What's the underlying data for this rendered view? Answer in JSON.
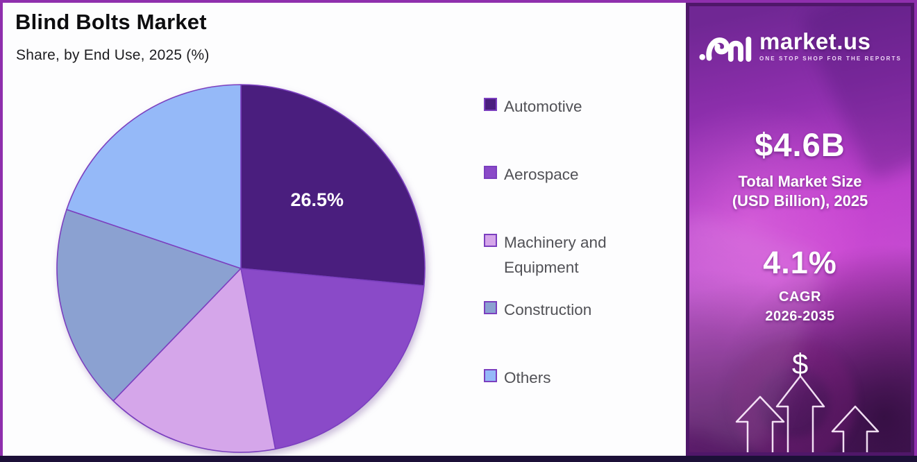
{
  "header": {
    "title": "Blind Bolts Market",
    "subtitle": "Share, by End Use, 2025 (%)"
  },
  "chart_data": {
    "type": "pie",
    "title": "Blind Bolts Market Share, by End Use, 2025 (%)",
    "unit": "%",
    "direction": "clockwise",
    "start_angle_deg": 0,
    "legend_position": "right",
    "stroke_color": "#7B3FBF",
    "slices": [
      {
        "label": "Automotive",
        "value": 26.5,
        "color": "#4A1E7E",
        "data_label": "26.5%"
      },
      {
        "label": "Aerospace",
        "value": 20.5,
        "color": "#8A4AC8",
        "data_label": ""
      },
      {
        "label": "Machinery and Equipment",
        "value": 15.2,
        "color": "#D5A6EA",
        "data_label": ""
      },
      {
        "label": "Construction",
        "value": 18.0,
        "color": "#8BA1D1",
        "data_label": ""
      },
      {
        "label": "Others",
        "value": 19.8,
        "color": "#95B9F8",
        "data_label": ""
      }
    ]
  },
  "sidebar": {
    "logo": {
      "brand": "market.us",
      "tagline": "ONE STOP SHOP FOR THE REPORTS"
    },
    "market_size": {
      "value": "$4.6B",
      "label_line1": "Total Market Size",
      "label_line2": "(USD Billion), 2025"
    },
    "cagr": {
      "value": "4.1%",
      "label_line1": "CAGR",
      "label_line2": "2026-2035"
    },
    "dollar_symbol": "$"
  },
  "colors": {
    "frame_border": "#8F2FAD",
    "bottom_bar": "#1C1038",
    "sidebar_border": "#4F1769",
    "pie_stroke": "#7B3FBF",
    "legend_text": "#515156"
  }
}
